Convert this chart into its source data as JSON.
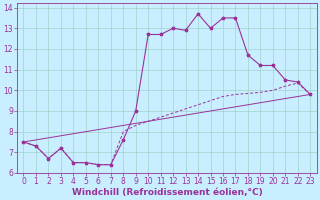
{
  "xlabel": "Windchill (Refroidissement éolien,°C)",
  "background_color": "#c8eeff",
  "line_color": "#993399",
  "xlim": [
    -0.5,
    23.5
  ],
  "ylim": [
    6,
    14.2
  ],
  "xticks": [
    0,
    1,
    2,
    3,
    4,
    5,
    6,
    7,
    8,
    9,
    10,
    11,
    12,
    13,
    14,
    15,
    16,
    17,
    18,
    19,
    20,
    21,
    22,
    23
  ],
  "yticks": [
    6,
    7,
    8,
    9,
    10,
    11,
    12,
    13,
    14
  ],
  "series1_x": [
    0,
    1,
    2,
    3,
    4,
    5,
    6,
    7,
    8,
    9,
    10,
    11,
    12,
    13,
    14,
    15,
    16,
    17,
    18,
    19,
    20,
    21,
    22,
    23
  ],
  "series1_y": [
    7.5,
    7.3,
    6.7,
    7.2,
    6.5,
    6.5,
    6.4,
    6.4,
    7.6,
    9.0,
    12.7,
    12.7,
    13.0,
    12.9,
    13.7,
    13.0,
    13.5,
    13.5,
    11.7,
    11.2,
    11.2,
    10.5,
    10.4,
    9.8
  ],
  "series2_x": [
    0,
    1,
    2,
    3,
    4,
    5,
    6,
    7,
    8,
    9,
    10,
    11,
    12,
    13,
    14,
    15,
    16,
    17,
    18,
    19,
    20,
    21,
    22,
    23
  ],
  "series2_y": [
    7.5,
    7.3,
    6.7,
    7.2,
    6.5,
    6.5,
    6.4,
    6.4,
    8.0,
    8.3,
    8.5,
    8.7,
    8.9,
    9.1,
    9.3,
    9.5,
    9.7,
    9.8,
    9.85,
    9.9,
    10.0,
    10.2,
    10.35,
    9.8
  ],
  "series3_x": [
    0,
    23
  ],
  "series3_y": [
    7.5,
    9.8
  ],
  "font_size": 6,
  "tick_font_size": 5.5,
  "xlabel_fontsize": 6.5
}
